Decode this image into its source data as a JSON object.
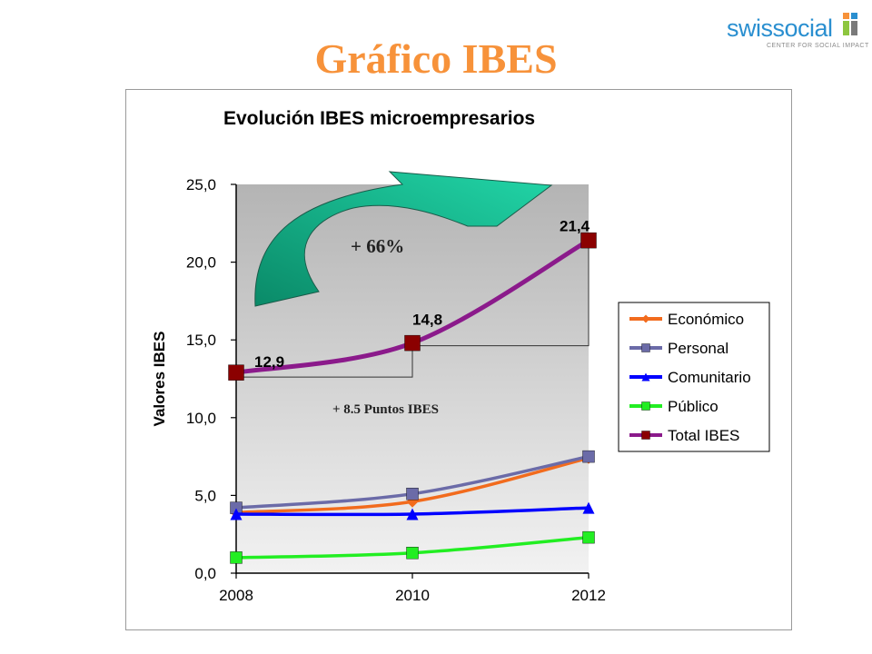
{
  "page": {
    "title": "Gráfico IBES",
    "logo": {
      "text": "swissocial",
      "tagline": "CENTER FOR SOCIAL IMPACT",
      "colors": [
        "#f7923a",
        "#2a8fd0",
        "#8dc63f",
        "#7a7a7a"
      ]
    }
  },
  "chart_data": {
    "type": "line",
    "title": "Evolución IBES microempresarios",
    "ylabel": "Valores IBES",
    "xlabel": "",
    "x": [
      "2008",
      "2010",
      "2012"
    ],
    "ylim": [
      0,
      25
    ],
    "yticks": [
      "0,0",
      "5,0",
      "10,0",
      "15,0",
      "20,0",
      "25,0"
    ],
    "grid": false,
    "legend_position": "right",
    "plot_background": "gradient grey",
    "series": [
      {
        "name": "Económico",
        "values": [
          3.9,
          4.6,
          7.4
        ],
        "color": "#f26b1d",
        "marker": "diamond"
      },
      {
        "name": "Personal",
        "values": [
          4.2,
          5.1,
          7.5
        ],
        "color": "#6b6ba8",
        "marker": "square"
      },
      {
        "name": "Comunitario",
        "values": [
          3.8,
          3.8,
          4.2
        ],
        "color": "#0000ff",
        "marker": "triangle"
      },
      {
        "name": "Público",
        "values": [
          1.0,
          1.3,
          2.3
        ],
        "color": "#22ee22",
        "marker": "square"
      },
      {
        "name": "Total IBES",
        "values": [
          12.9,
          14.8,
          21.4
        ],
        "color": "#8b1a8b",
        "marker": "square",
        "marker_color": "#8b0000"
      }
    ],
    "data_labels": [
      "12,9",
      "14,8",
      "21,4"
    ],
    "annotations": {
      "growth": "+ 66%",
      "points": "+ 8.5 Puntos IBES"
    }
  }
}
